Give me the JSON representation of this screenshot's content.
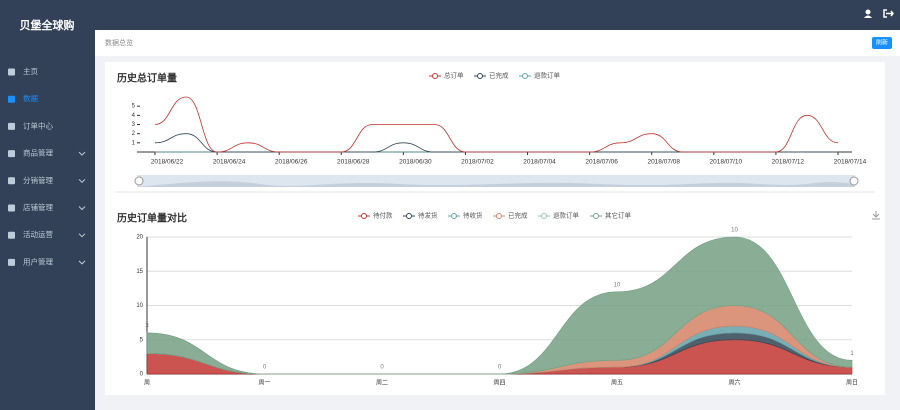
{
  "sidebar": {
    "logo": "贝堡全球购",
    "menu": [
      "主页",
      "数据",
      "订单中心",
      "商品管理",
      "分销管理",
      "店铺管理",
      "活动运营",
      "用户管理"
    ],
    "active_menu": 1,
    "expandable": [
      false,
      false,
      false,
      true,
      true,
      true,
      true,
      true
    ]
  },
  "breadcrumb": "数据总览",
  "refresh_button": "刷新",
  "chart_data": [
    {
      "type": "line",
      "title": "历史总订单量",
      "smooth": true,
      "grid": false,
      "categories": [
        "2018/06/22",
        null,
        "2018/06/24",
        null,
        "2018/06/26",
        null,
        "2018/06/28",
        null,
        "2018/06/30",
        null,
        "2018/07/02",
        null,
        "2018/07/04",
        null,
        "2018/07/06",
        null,
        "2018/07/08",
        null,
        "2018/07/10",
        null,
        "2018/07/12",
        null,
        "2018/07/14"
      ],
      "series": [
        {
          "name": "总订单",
          "color": "#c23531",
          "values": [
            3,
            6,
            0,
            1,
            0,
            0,
            0,
            3,
            3,
            3,
            0,
            0,
            0,
            0,
            0,
            1,
            2,
            0,
            0,
            0,
            0,
            4,
            1
          ]
        },
        {
          "name": "已完成",
          "color": "#2f4554",
          "values": [
            1,
            2,
            0,
            0,
            0,
            0,
            0,
            0,
            1,
            0,
            0,
            0,
            0,
            0,
            0,
            0,
            0,
            0,
            0,
            0,
            0,
            0,
            0
          ]
        },
        {
          "name": "退款订单",
          "color": "#61a0a8",
          "values": [
            0,
            0,
            0,
            0,
            0,
            0,
            0,
            0,
            0,
            0,
            0,
            0,
            0,
            0,
            0,
            0,
            0,
            0,
            0,
            0,
            0,
            0,
            0
          ]
        }
      ],
      "ylim": [
        0,
        6
      ],
      "yticks": [
        1,
        2,
        3,
        4,
        5
      ]
    },
    {
      "type": "area",
      "title": "历史订单量对比",
      "stacked": true,
      "smooth": true,
      "grid": true,
      "categories": [
        "周",
        "周一",
        "周二",
        "周四",
        "周五",
        "周六",
        "周日"
      ],
      "series": [
        {
          "name": "待付款",
          "color": "#c23531",
          "values": [
            3,
            0,
            0,
            0,
            1,
            5,
            1
          ]
        },
        {
          "name": "待发货",
          "color": "#2f4554",
          "values": [
            0,
            0,
            0,
            0,
            0,
            1,
            0
          ]
        },
        {
          "name": "待收货",
          "color": "#61a0a8",
          "values": [
            0,
            0,
            0,
            0,
            0,
            1,
            0
          ]
        },
        {
          "name": "已完成",
          "color": "#d48265",
          "values": [
            0,
            0,
            0,
            0,
            1,
            3,
            0
          ]
        },
        {
          "name": "退款订单",
          "color": "#91c7ae",
          "values": [
            0,
            0,
            0,
            0,
            0,
            0,
            0
          ]
        },
        {
          "name": "其它订单",
          "color": "#749f83",
          "values": [
            3,
            0,
            0,
            0,
            10,
            10,
            1
          ],
          "show_labels": true
        }
      ],
      "ylim": [
        0,
        20
      ],
      "yticks": [
        0,
        5,
        10,
        15,
        20
      ]
    }
  ]
}
